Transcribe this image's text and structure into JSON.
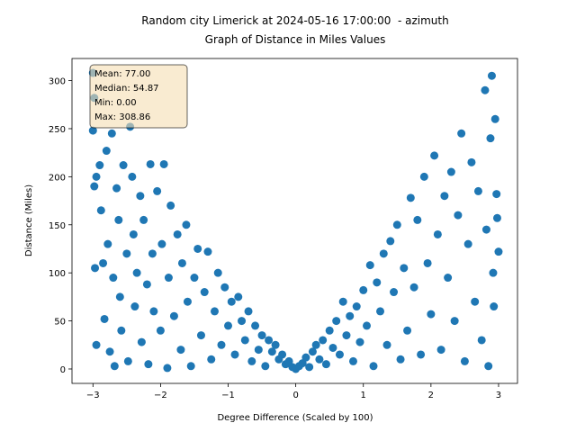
{
  "chart_data": {
    "type": "scatter",
    "title": "Random city Limerick at 2024-05-16 17:00:00  - azimuth",
    "subtitle": "Graph of Distance in Miles Values",
    "x_label": "Degree Difference (Scaled by 100)",
    "y_label": "Distance (Miles)",
    "stats_lines": [
      "Mean: 77.00",
      "Median: 54.87",
      "Min: 0.00",
      "Max: 308.86"
    ],
    "color": "#1f77b4",
    "xlim": [
      -3.31,
      3.28
    ],
    "ylim": [
      -15,
      323
    ],
    "xticks": [
      {
        "value": -3,
        "label": "−3"
      },
      {
        "value": -2,
        "label": "−2"
      },
      {
        "value": -1,
        "label": "−1"
      },
      0,
      1,
      2,
      3
    ],
    "yticks": [
      0,
      50,
      100,
      150,
      200,
      250,
      300
    ],
    "x": [
      -3.0,
      -2.98,
      -3.0,
      -2.95,
      -2.98,
      -2.97,
      -2.95,
      -2.9,
      -2.88,
      -2.85,
      -2.83,
      -2.8,
      -2.78,
      -2.75,
      -2.72,
      -2.7,
      -2.68,
      -2.65,
      -2.62,
      -2.6,
      -2.58,
      -2.55,
      -2.5,
      -2.48,
      -2.45,
      -2.42,
      -2.4,
      -2.38,
      -2.35,
      -2.3,
      -2.28,
      -2.25,
      -2.2,
      -2.18,
      -2.15,
      -2.12,
      -2.1,
      -2.05,
      -2.0,
      -1.98,
      -1.95,
      -1.9,
      -1.88,
      -1.85,
      -1.8,
      -1.75,
      -1.7,
      -1.68,
      -1.62,
      -1.6,
      -1.55,
      -1.5,
      -1.45,
      -1.4,
      -1.35,
      -1.3,
      -1.25,
      -1.2,
      -1.15,
      -1.1,
      -1.05,
      -1.0,
      -0.95,
      -0.9,
      -0.85,
      -0.8,
      -0.75,
      -0.7,
      -0.65,
      -0.6,
      -0.55,
      -0.5,
      -0.45,
      -0.4,
      -0.35,
      -0.3,
      -0.25,
      -0.2,
      -0.15,
      -0.1,
      -0.05,
      0,
      0.05,
      0.1,
      0.15,
      0.2,
      0.25,
      0.3,
      0.35,
      0.4,
      0.45,
      0.5,
      0.55,
      0.6,
      0.65,
      0.7,
      0.75,
      0.8,
      0.85,
      0.9,
      0.95,
      1.0,
      1.05,
      1.1,
      1.15,
      1.2,
      1.25,
      1.3,
      1.35,
      1.4,
      1.45,
      1.5,
      1.55,
      1.6,
      1.65,
      1.7,
      1.75,
      1.8,
      1.85,
      1.9,
      1.95,
      2.0,
      2.05,
      2.1,
      2.15,
      2.2,
      2.25,
      2.3,
      2.35,
      2.4,
      2.45,
      2.5,
      2.55,
      2.6,
      2.65,
      2.7,
      2.75,
      2.8,
      2.82,
      2.85,
      2.88,
      2.9,
      2.92,
      2.95,
      2.97,
      3.0,
      2.98,
      2.93
    ],
    "y": [
      308,
      282,
      248,
      200,
      190,
      105,
      25,
      212,
      165,
      110,
      52,
      227,
      130,
      18,
      245,
      95,
      3,
      188,
      155,
      75,
      40,
      212,
      120,
      8,
      252,
      200,
      140,
      65,
      100,
      180,
      28,
      155,
      88,
      5,
      213,
      120,
      60,
      185,
      40,
      130,
      213,
      1,
      95,
      170,
      55,
      140,
      20,
      110,
      150,
      70,
      3,
      95,
      125,
      35,
      80,
      122,
      10,
      60,
      100,
      25,
      85,
      45,
      70,
      15,
      75,
      50,
      30,
      60,
      8,
      45,
      20,
      35,
      3,
      30,
      18,
      25,
      10,
      15,
      5,
      8,
      2,
      0,
      3,
      6,
      12,
      2,
      18,
      25,
      10,
      30,
      5,
      40,
      22,
      50,
      15,
      70,
      35,
      55,
      8,
      65,
      28,
      82,
      45,
      108,
      3,
      90,
      60,
      120,
      25,
      133,
      80,
      150,
      10,
      105,
      40,
      178,
      85,
      155,
      15,
      200,
      110,
      57,
      222,
      140,
      20,
      180,
      95,
      205,
      50,
      160,
      245,
      8,
      130,
      215,
      70,
      185,
      30,
      290,
      145,
      3,
      240,
      305,
      100,
      260,
      182,
      122,
      157,
      65
    ]
  }
}
